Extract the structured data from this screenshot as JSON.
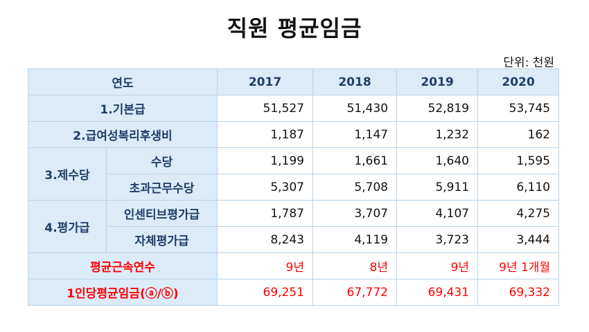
{
  "title": "직원 평균임금",
  "unit": "단위: 천원",
  "header": {
    "label": "연도",
    "years": [
      "2017",
      "2018",
      "2019",
      "2020"
    ]
  },
  "rows": {
    "basic": {
      "label": "1.기본급",
      "values": [
        "51,527",
        "51,430",
        "52,819",
        "53,745"
      ]
    },
    "welfare": {
      "label": "2.급여성복리후생비",
      "values": [
        "1,187",
        "1,147",
        "1,232",
        "162"
      ]
    },
    "allowance": {
      "group": "3.제수당",
      "sub1": {
        "label": "수당",
        "values": [
          "1,199",
          "1,661",
          "1,640",
          "1,595"
        ]
      },
      "sub2": {
        "label": "초과근무수당",
        "values": [
          "5,307",
          "5,708",
          "5,911",
          "6,110"
        ]
      }
    },
    "evaluation": {
      "group": "4.평가급",
      "sub1": {
        "label": "인센티브평가급",
        "values": [
          "1,787",
          "3,707",
          "4,107",
          "4,275"
        ]
      },
      "sub2": {
        "label": "자체평가급",
        "values": [
          "8,243",
          "4,119",
          "3,723",
          "3,444"
        ]
      }
    },
    "tenure": {
      "label": "평균근속연수",
      "values": [
        "9년",
        "8년",
        "9년",
        "9년 1개월"
      ]
    },
    "avg_wage": {
      "label": "1인당평균임금(ⓐ/ⓑ)",
      "values": [
        "69,251",
        "67,772",
        "69,431",
        "69,332"
      ]
    }
  }
}
